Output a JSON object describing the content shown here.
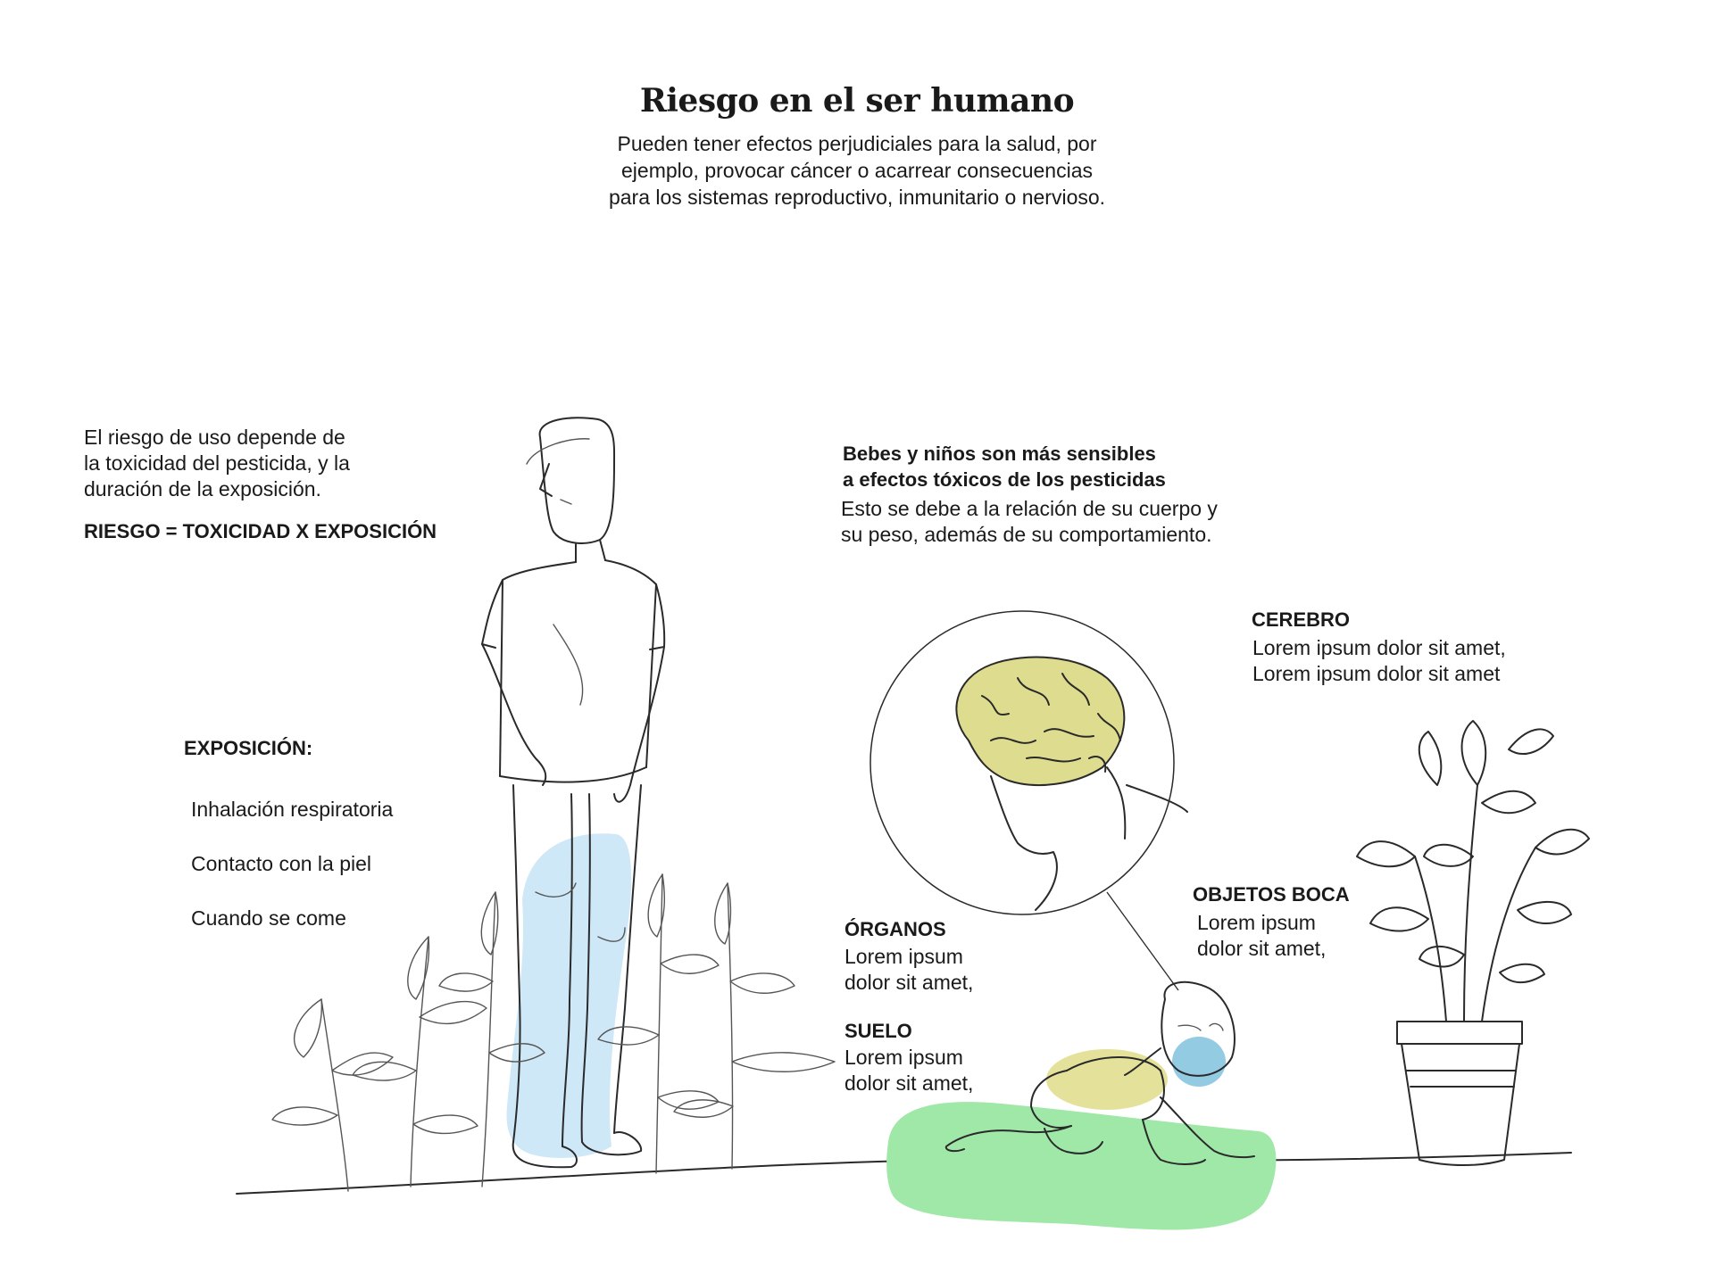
{
  "title": "Riesgo en el ser humano",
  "intro": {
    "line1": "Pueden tener efectos perjudiciales para la salud, por",
    "line2": "ejemplo, provocar cáncer o acarrear consecuencias",
    "line3": "para los sistemas reproductivo, inmunitario o nervioso."
  },
  "risk": {
    "line1": "El riesgo de uso depende de",
    "line2": "la toxicidad del pesticida, y la",
    "line3": "duración de la exposición.",
    "formula": "RIESGO = TOXICIDAD X EXPOSICIÓN"
  },
  "exposure": {
    "heading": "EXPOSICIÓN:",
    "items": [
      "Inhalación respiratoria",
      "Contacto con la piel",
      "Cuando se come"
    ]
  },
  "children": {
    "heading_line1": "Bebes y niños son más sensibles",
    "heading_line2": "a efectos tóxicos de los pesticidas",
    "text_line1": "Esto se debe a la relación de su cuerpo y",
    "text_line2": "su peso, además de su comportamiento."
  },
  "labels": {
    "cerebro": {
      "heading": "CEREBRO",
      "line1": "Lorem ipsum dolor sit amet,",
      "line2": "Lorem ipsum dolor sit amet"
    },
    "organos": {
      "heading": "ÓRGANOS",
      "line1": "Lorem ipsum",
      "line2": "dolor sit amet,"
    },
    "suelo": {
      "heading": "SUELO",
      "line1": "Lorem ipsum",
      "line2": "dolor sit amet,"
    },
    "objetos_boca": {
      "heading": "OBJETOS BOCA",
      "line1": "Lorem ipsum",
      "line2": "dolor sit amet,"
    }
  },
  "colors": {
    "skin_exposure": "#cfe8f7",
    "organs": "#e4e29a",
    "brain": "#dedc8e",
    "soil": "#9fe8a8",
    "mouth": "#93cbe3",
    "ink": "#1a1a1a"
  },
  "icons": [
    "man-sketch-illustration",
    "plants-illustration",
    "brain-head-illustration",
    "baby-crawling-illustration",
    "potted-plant-illustration"
  ]
}
